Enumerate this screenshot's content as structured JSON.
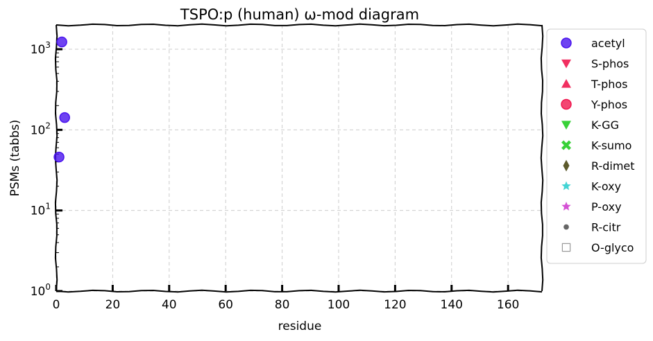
{
  "chart_data": {
    "type": "scatter",
    "title": "TSPO:p (human) ω-mod diagram",
    "xlabel": "residue",
    "ylabel": "PSMs (tabbs)",
    "xlim": [
      0,
      172
    ],
    "ylim": [
      1,
      2000
    ],
    "yscale": "log",
    "xticks": [
      0,
      20,
      40,
      60,
      80,
      100,
      120,
      140,
      160
    ],
    "xtick_labels": [
      "0",
      "20",
      "40",
      "60",
      "80",
      "100",
      "120",
      "140",
      "160"
    ],
    "yticks": [
      1,
      10,
      100,
      1000
    ],
    "ytick_labels": [
      {
        "base": "10",
        "exp": "0"
      },
      {
        "base": "10",
        "exp": "1"
      },
      {
        "base": "10",
        "exp": "2"
      },
      {
        "base": "10",
        "exp": "3"
      }
    ],
    "grid": true,
    "legend_position": "outside-right",
    "series": [
      {
        "name": "acetyl",
        "marker": "circle",
        "color": "#4a14ee",
        "x": [
          1,
          2,
          3
        ],
        "y": [
          46,
          1230,
          142
        ]
      },
      {
        "name": "S-phos",
        "marker": "triangle-down",
        "color": "#f0184f",
        "x": [],
        "y": []
      },
      {
        "name": "T-phos",
        "marker": "triangle-up",
        "color": "#f0184f",
        "x": [],
        "y": []
      },
      {
        "name": "Y-phos",
        "marker": "circle",
        "color": "#f0184f",
        "x": [],
        "y": []
      },
      {
        "name": "K-GG",
        "marker": "triangle-down",
        "color": "#22cc22",
        "x": [],
        "y": []
      },
      {
        "name": "K-sumo",
        "marker": "x",
        "color": "#22cc22",
        "x": [],
        "y": []
      },
      {
        "name": "R-dimet",
        "marker": "diamond",
        "color": "#5c5a2c",
        "x": [],
        "y": []
      },
      {
        "name": "K-oxy",
        "marker": "star",
        "color": "#22cccc",
        "x": [],
        "y": []
      },
      {
        "name": "P-oxy",
        "marker": "star",
        "color": "#cc33cc",
        "x": [],
        "y": []
      },
      {
        "name": "R-citr",
        "marker": "dot",
        "color": "#666666",
        "x": [],
        "y": []
      },
      {
        "name": "O-glyco",
        "marker": "square-open",
        "color": "#999999",
        "x": [],
        "y": []
      }
    ]
  }
}
